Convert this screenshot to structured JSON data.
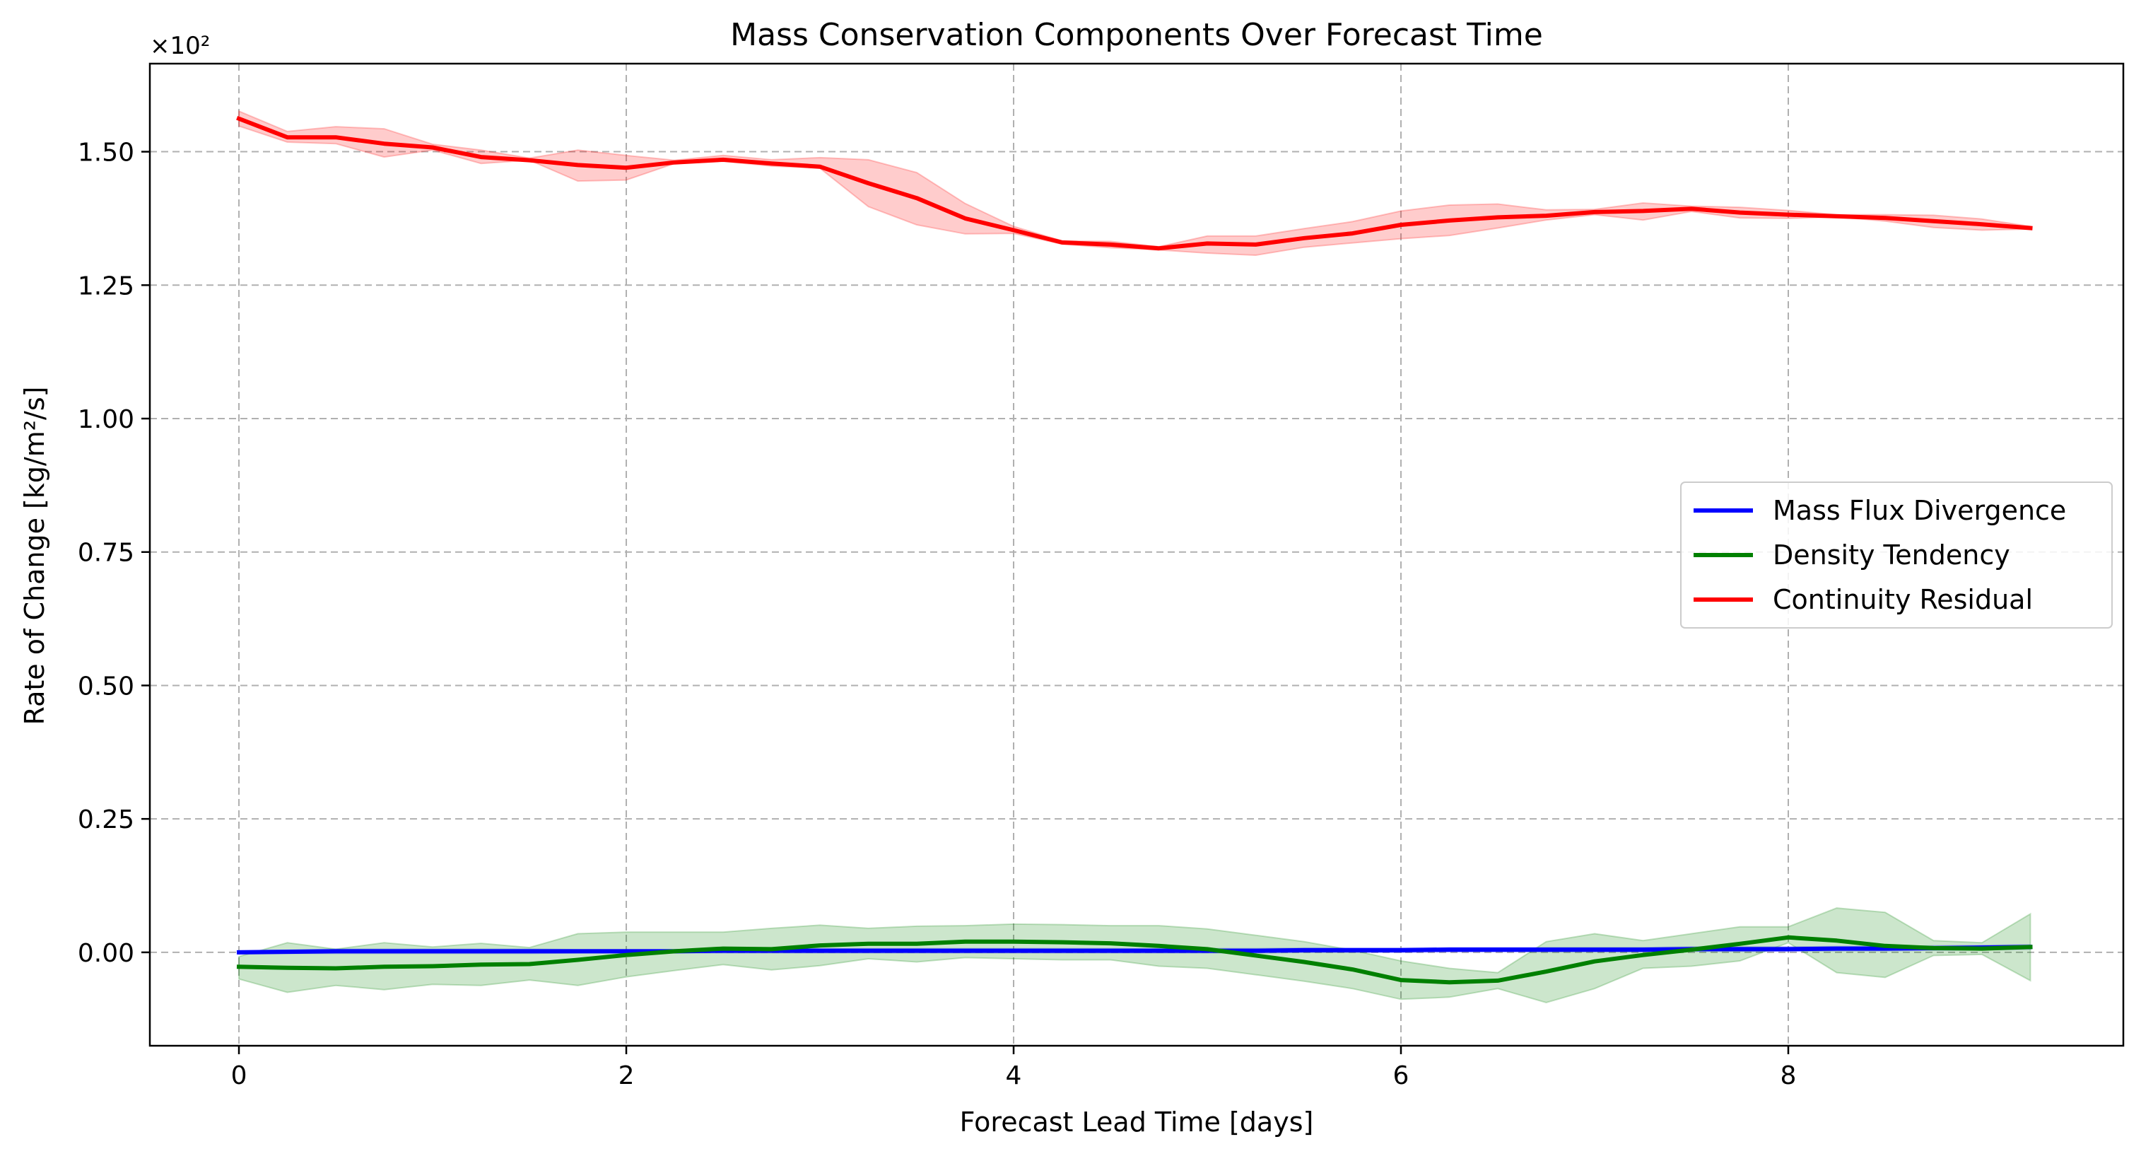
{
  "chart_data": {
    "type": "line",
    "title": "Mass Conservation Components Over Forecast Time",
    "xlabel": "Forecast Lead Time [days]",
    "ylabel": "Rate of Change [kg/m²/s]",
    "y_offset_label": "×10²",
    "xlim": [
      -0.46,
      9.73
    ],
    "ylim": [
      -0.175,
      1.665
    ],
    "x_ticks": [
      0,
      2,
      4,
      6,
      8
    ],
    "x_tick_labels": [
      "0",
      "2",
      "4",
      "6",
      "8"
    ],
    "y_ticks": [
      0.0,
      0.25,
      0.5,
      0.75,
      1.0,
      1.25,
      1.5
    ],
    "y_tick_labels": [
      "0.00",
      "0.25",
      "0.50",
      "0.75",
      "1.00",
      "1.25",
      "1.50"
    ],
    "grid": true,
    "legend_position": "center-right",
    "x": [
      0,
      0.25,
      0.5,
      0.75,
      1.0,
      1.25,
      1.5,
      1.75,
      2.0,
      2.25,
      2.5,
      2.75,
      3.0,
      3.25,
      3.5,
      3.75,
      4.0,
      4.25,
      4.5,
      4.75,
      5.0,
      5.25,
      5.5,
      5.75,
      6.0,
      6.25,
      6.5,
      6.75,
      7.0,
      7.25,
      7.5,
      7.75,
      8.0,
      8.25,
      8.5,
      8.75,
      9.0,
      9.25
    ],
    "series": [
      {
        "name": "Mass Flux Divergence",
        "color": "#0000ff",
        "values": [
          0.0,
          0.001,
          0.002,
          0.002,
          0.002,
          0.002,
          0.002,
          0.002,
          0.002,
          0.002,
          0.003,
          0.003,
          0.003,
          0.003,
          0.003,
          0.003,
          0.003,
          0.003,
          0.003,
          0.003,
          0.003,
          0.003,
          0.004,
          0.004,
          0.004,
          0.005,
          0.005,
          0.005,
          0.005,
          0.005,
          0.006,
          0.006,
          0.006,
          0.007,
          0.007,
          0.008,
          0.009,
          0.01
        ],
        "band_lower": [
          -0.003,
          -0.002,
          -0.002,
          -0.002,
          -0.002,
          -0.002,
          -0.002,
          -0.001,
          -0.001,
          -0.001,
          -0.001,
          -0.001,
          -0.001,
          -0.001,
          -0.001,
          -0.001,
          -0.001,
          -0.001,
          -0.001,
          -0.001,
          -0.001,
          -0.001,
          0.0,
          0.0,
          0.0,
          0.001,
          0.001,
          0.001,
          0.001,
          0.001,
          0.002,
          0.002,
          0.002,
          0.003,
          0.003,
          0.004,
          0.005,
          0.006
        ],
        "band_upper": [
          0.003,
          0.004,
          0.006,
          0.006,
          0.006,
          0.006,
          0.006,
          0.005,
          0.005,
          0.005,
          0.007,
          0.007,
          0.007,
          0.007,
          0.007,
          0.007,
          0.007,
          0.007,
          0.007,
          0.007,
          0.007,
          0.007,
          0.008,
          0.008,
          0.008,
          0.009,
          0.009,
          0.009,
          0.009,
          0.009,
          0.01,
          0.01,
          0.01,
          0.011,
          0.011,
          0.012,
          0.013,
          0.014
        ]
      },
      {
        "name": "Density Tendency",
        "color": "#008000",
        "values": [
          -0.027,
          -0.029,
          -0.03,
          -0.027,
          -0.026,
          -0.023,
          -0.022,
          -0.014,
          -0.005,
          0.002,
          0.007,
          0.006,
          0.013,
          0.016,
          0.016,
          0.02,
          0.02,
          0.019,
          0.017,
          0.012,
          0.006,
          -0.006,
          -0.018,
          -0.032,
          -0.052,
          -0.056,
          -0.053,
          -0.036,
          -0.017,
          -0.005,
          0.005,
          0.016,
          0.028,
          0.022,
          0.012,
          0.008,
          0.007,
          0.01
        ],
        "band_lower": [
          -0.05,
          -0.075,
          -0.062,
          -0.07,
          -0.06,
          -0.062,
          -0.052,
          -0.062,
          -0.046,
          -0.034,
          -0.023,
          -0.033,
          -0.025,
          -0.012,
          -0.018,
          -0.01,
          -0.012,
          -0.014,
          -0.014,
          -0.026,
          -0.03,
          -0.042,
          -0.054,
          -0.068,
          -0.088,
          -0.084,
          -0.068,
          -0.094,
          -0.068,
          -0.03,
          -0.026,
          -0.016,
          0.018,
          -0.038,
          -0.047,
          -0.006,
          -0.004,
          -0.053
        ],
        "band_upper": [
          -0.008,
          0.018,
          0.006,
          0.018,
          0.01,
          0.017,
          0.009,
          0.035,
          0.038,
          0.038,
          0.038,
          0.045,
          0.051,
          0.045,
          0.049,
          0.05,
          0.053,
          0.052,
          0.05,
          0.05,
          0.044,
          0.032,
          0.02,
          0.004,
          -0.016,
          -0.03,
          -0.038,
          0.02,
          0.035,
          0.022,
          0.035,
          0.048,
          0.048,
          0.083,
          0.075,
          0.022,
          0.018,
          0.072
        ]
      },
      {
        "name": "Continuity Residual",
        "color": "#ff0000",
        "values": [
          1.562,
          1.527,
          1.527,
          1.515,
          1.508,
          1.49,
          1.484,
          1.475,
          1.47,
          1.48,
          1.485,
          1.478,
          1.472,
          1.441,
          1.413,
          1.375,
          1.353,
          1.33,
          1.326,
          1.319,
          1.328,
          1.326,
          1.338,
          1.347,
          1.363,
          1.371,
          1.377,
          1.38,
          1.387,
          1.389,
          1.393,
          1.386,
          1.382,
          1.379,
          1.376,
          1.37,
          1.364,
          1.357
        ],
        "band_lower": [
          1.548,
          1.518,
          1.515,
          1.49,
          1.503,
          1.478,
          1.484,
          1.445,
          1.447,
          1.478,
          1.482,
          1.473,
          1.469,
          1.397,
          1.363,
          1.346,
          1.347,
          1.327,
          1.32,
          1.316,
          1.31,
          1.306,
          1.321,
          1.329,
          1.337,
          1.343,
          1.357,
          1.372,
          1.382,
          1.372,
          1.388,
          1.376,
          1.375,
          1.378,
          1.37,
          1.358,
          1.353,
          1.355
        ],
        "band_upper": [
          1.576,
          1.538,
          1.547,
          1.543,
          1.514,
          1.503,
          1.488,
          1.503,
          1.493,
          1.484,
          1.493,
          1.485,
          1.489,
          1.485,
          1.461,
          1.403,
          1.36,
          1.333,
          1.332,
          1.322,
          1.342,
          1.342,
          1.356,
          1.369,
          1.389,
          1.4,
          1.402,
          1.391,
          1.392,
          1.404,
          1.398,
          1.396,
          1.39,
          1.382,
          1.382,
          1.381,
          1.374,
          1.36
        ]
      }
    ]
  }
}
